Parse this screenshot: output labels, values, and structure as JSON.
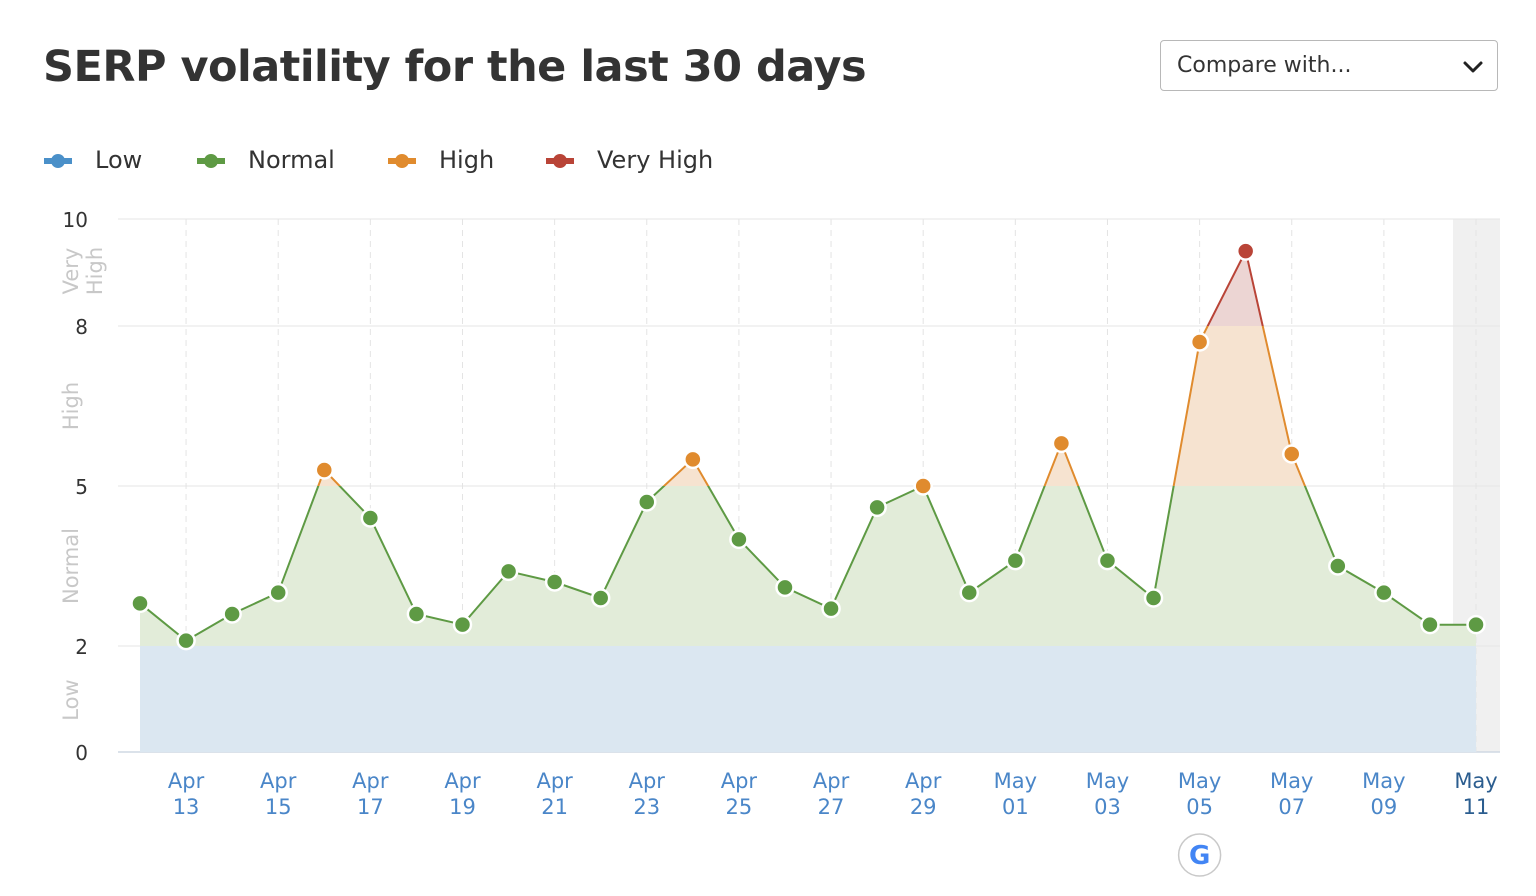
{
  "header": {
    "title": "SERP volatility for the last 30 days",
    "compare_label": "Compare with..."
  },
  "colors": {
    "low": "#4a90c9",
    "normal": "#5e9a44",
    "high": "#e08b2e",
    "very_high": "#b94437",
    "low_fill": "#dbe7f1",
    "normal_fill": "#e2ecd9",
    "high_fill": "#f6e3d0",
    "very_high_fill": "#ecd5d3",
    "axis_label": "#4a86c8"
  },
  "chart_data": {
    "type": "line",
    "title": "SERP volatility for the last 30 days",
    "legend": {
      "placement": "top-left",
      "items": [
        {
          "name": "Low",
          "color": "#4a90c9"
        },
        {
          "name": "Normal",
          "color": "#5e9a44"
        },
        {
          "name": "High",
          "color": "#e08b2e"
        },
        {
          "name": "Very High",
          "color": "#b94437"
        }
      ]
    },
    "ylim": [
      0,
      10
    ],
    "y_ticks": [
      "0",
      "2",
      "5",
      "8",
      "10"
    ],
    "bands": [
      {
        "name": "Low",
        "from": 0,
        "to": 2
      },
      {
        "name": "Normal",
        "from": 2,
        "to": 5
      },
      {
        "name": "High",
        "from": 5,
        "to": 8
      },
      {
        "name": "Very High",
        "from": 8,
        "to": 10
      }
    ],
    "x_ticks": [
      {
        "month": "Apr",
        "day": "13"
      },
      {
        "month": "Apr",
        "day": "15"
      },
      {
        "month": "Apr",
        "day": "17"
      },
      {
        "month": "Apr",
        "day": "19"
      },
      {
        "month": "Apr",
        "day": "21"
      },
      {
        "month": "Apr",
        "day": "23"
      },
      {
        "month": "Apr",
        "day": "25"
      },
      {
        "month": "Apr",
        "day": "27"
      },
      {
        "month": "Apr",
        "day": "29"
      },
      {
        "month": "May",
        "day": "01"
      },
      {
        "month": "May",
        "day": "03"
      },
      {
        "month": "May",
        "day": "05"
      },
      {
        "month": "May",
        "day": "07"
      },
      {
        "month": "May",
        "day": "09"
      },
      {
        "month": "May",
        "day": "11"
      }
    ],
    "x": [
      "Apr 12",
      "Apr 13",
      "Apr 14",
      "Apr 15",
      "Apr 16",
      "Apr 17",
      "Apr 18",
      "Apr 19",
      "Apr 20",
      "Apr 21",
      "Apr 22",
      "Apr 23",
      "Apr 24",
      "Apr 25",
      "Apr 26",
      "Apr 27",
      "Apr 28",
      "Apr 29",
      "Apr 30",
      "May 01",
      "May 02",
      "May 03",
      "May 04",
      "May 05",
      "May 06",
      "May 07",
      "May 08",
      "May 09",
      "May 10",
      "May 11"
    ],
    "series": [
      {
        "values": [
          2.8,
          2.1,
          2.6,
          3.0,
          5.3,
          4.4,
          2.6,
          2.4,
          3.4,
          3.2,
          2.9,
          4.7,
          5.5,
          4.0,
          3.1,
          2.7,
          4.6,
          5.0,
          3.0,
          3.6,
          5.8,
          3.6,
          2.9,
          7.7,
          9.4,
          5.6,
          3.5,
          3.0,
          2.4,
          2.4
        ],
        "levels": [
          "Normal",
          "Normal",
          "Normal",
          "Normal",
          "High",
          "Normal",
          "Normal",
          "Normal",
          "Normal",
          "Normal",
          "Normal",
          "Normal",
          "High",
          "Normal",
          "Normal",
          "Normal",
          "Normal",
          "High",
          "Normal",
          "Normal",
          "High",
          "Normal",
          "Normal",
          "High",
          "Very High",
          "High",
          "Normal",
          "Normal",
          "Normal",
          "Normal"
        ]
      }
    ],
    "band_labels": [
      "Low",
      "Normal",
      "High",
      "Very High"
    ],
    "highlight_last_day": true,
    "google_update_marker_day": "May 05",
    "google_marker_label": "G",
    "grid": true
  }
}
